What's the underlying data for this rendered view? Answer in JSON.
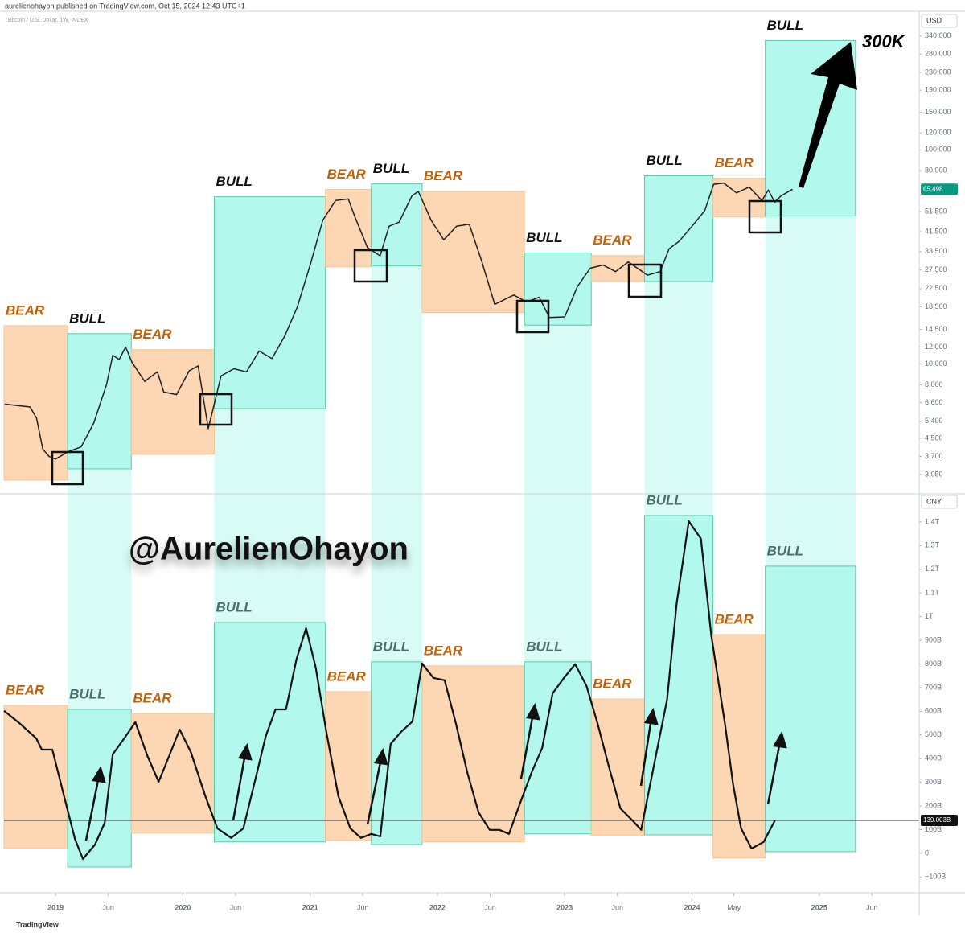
{
  "header": {
    "byline": "aurelienohayon published on TradingView.com, Oct 15, 2024 12:43 UTC+1",
    "footer": "TradingView",
    "watermark": "@AurelienOhayon"
  },
  "chart_data": [
    {
      "type": "line",
      "log": true,
      "unit": "USD",
      "annotation": "300K",
      "xlim": [
        2018.595,
        2025.785
      ],
      "ylim": [
        2520,
        440000
      ],
      "yticks": [
        {
          "value": 3050,
          "label": "3,050"
        },
        {
          "value": 3700,
          "label": "3,700"
        },
        {
          "value": 4500,
          "label": "4,500"
        },
        {
          "value": 5400,
          "label": "5,400"
        },
        {
          "value": 6600,
          "label": "6,600"
        },
        {
          "value": 8000,
          "label": "8,000"
        },
        {
          "value": 10000,
          "label": "10,000"
        },
        {
          "value": 12000,
          "label": "12,000"
        },
        {
          "value": 14500,
          "label": "14,500"
        },
        {
          "value": 18500,
          "label": "18,500"
        },
        {
          "value": 22500,
          "label": "22,500"
        },
        {
          "value": 27500,
          "label": "27,500"
        },
        {
          "value": 33500,
          "label": "33,500"
        },
        {
          "value": 41500,
          "label": "41,500"
        },
        {
          "value": 51500,
          "label": "51,500"
        },
        {
          "value": 80000,
          "label": "80,000"
        },
        {
          "value": 100000,
          "label": "100,000"
        },
        {
          "value": 120000,
          "label": "120,000"
        },
        {
          "value": 150000,
          "label": "150,000"
        },
        {
          "value": 190000,
          "label": "190,000"
        },
        {
          "value": 230000,
          "label": "230,000"
        },
        {
          "value": 280000,
          "label": "280,000"
        },
        {
          "value": 340000,
          "label": "340,000"
        }
      ],
      "current": {
        "value": 65498,
        "label": "65,498"
      },
      "series": [
        {
          "name": "Bitcoin / U.S. Dollar, 1W, INDEX",
          "color": "#222222",
          "x": [
            2018.6,
            2018.7,
            2018.8,
            2018.85,
            2018.9,
            2018.95,
            2019.0,
            2019.1,
            2019.2,
            2019.3,
            2019.4,
            2019.45,
            2019.5,
            2019.55,
            2019.6,
            2019.7,
            2019.8,
            2019.85,
            2019.95,
            2020.05,
            2020.12,
            2020.2,
            2020.3,
            2020.4,
            2020.5,
            2020.6,
            2020.7,
            2020.8,
            2020.9,
            2021.0,
            2021.1,
            2021.2,
            2021.3,
            2021.35,
            2021.45,
            2021.55,
            2021.62,
            2021.7,
            2021.8,
            2021.85,
            2021.95,
            2022.05,
            2022.15,
            2022.25,
            2022.35,
            2022.45,
            2022.6,
            2022.7,
            2022.8,
            2022.88,
            2023.0,
            2023.1,
            2023.2,
            2023.3,
            2023.4,
            2023.5,
            2023.65,
            2023.75,
            2023.82,
            2023.9,
            2024.0,
            2024.1,
            2024.17,
            2024.25,
            2024.35,
            2024.45,
            2024.55,
            2024.6,
            2024.65,
            2024.7,
            2024.79
          ],
          "values": [
            6500,
            6400,
            6300,
            5600,
            4000,
            3700,
            3600,
            3900,
            4100,
            5300,
            8000,
            11000,
            10500,
            12000,
            10200,
            8300,
            9200,
            7400,
            7200,
            9300,
            9800,
            5000,
            8800,
            9500,
            9200,
            11500,
            10600,
            13500,
            18500,
            29000,
            47000,
            58000,
            59000,
            49000,
            35000,
            32000,
            44000,
            46000,
            61000,
            64000,
            47000,
            38000,
            44000,
            45000,
            30000,
            19000,
            21000,
            19500,
            20500,
            16500,
            16600,
            23000,
            28000,
            29000,
            27000,
            30000,
            26000,
            27000,
            34500,
            37500,
            44000,
            52000,
            69000,
            70000,
            63000,
            67000,
            58000,
            65000,
            57000,
            61000,
            65498
          ]
        }
      ],
      "zone_colors": {
        "BULL": "#b2f8ec",
        "BEAR": "#fdd6b3"
      },
      "zone_label_colors": {
        "BULL": "#111111",
        "BEAR": "#c0620a"
      },
      "zones": [
        {
          "label": "BEAR",
          "x": [
            2018.595,
            2019.095
          ],
          "y": [
            2870,
            15100
          ]
        },
        {
          "label": "BULL",
          "x": [
            2019.095,
            2019.595
          ],
          "y": [
            3240,
            13870
          ]
        },
        {
          "label": "BEAR",
          "x": [
            2019.595,
            2020.247
          ],
          "y": [
            3790,
            11670
          ]
        },
        {
          "label": "BULL",
          "x": [
            2020.247,
            2021.12
          ],
          "y": [
            6190,
            60400
          ]
        },
        {
          "label": "BEAR",
          "x": [
            2021.12,
            2021.481
          ],
          "y": [
            28400,
            65300
          ]
        },
        {
          "label": "BULL",
          "x": [
            2021.481,
            2021.88
          ],
          "y": [
            28700,
            69400
          ]
        },
        {
          "label": "BEAR",
          "x": [
            2021.88,
            2022.684
          ],
          "y": [
            17400,
            64100
          ]
        },
        {
          "label": "BULL",
          "x": [
            2022.684,
            2023.209
          ],
          "y": [
            15200,
            33000
          ]
        },
        {
          "label": "BEAR",
          "x": [
            2023.209,
            2023.627
          ],
          "y": [
            24300,
            32100
          ]
        },
        {
          "label": "BULL",
          "x": [
            2023.627,
            2024.165
          ],
          "y": [
            24300,
            75700
          ]
        },
        {
          "label": "BEAR",
          "x": [
            2024.165,
            2024.576
          ],
          "y": [
            48600,
            73700
          ]
        },
        {
          "label": "BULL",
          "x": [
            2024.576,
            2025.285
          ],
          "y": [
            49100,
            324000
          ]
        }
      ]
    },
    {
      "type": "line",
      "unit": "CNY",
      "xlim": [
        2018.595,
        2025.785
      ],
      "ylim": [
        -160,
        1505
      ],
      "xticks": [
        {
          "value": 2019,
          "label": "2019"
        },
        {
          "value": 2019.414,
          "label": "Jun"
        },
        {
          "value": 2020,
          "label": "2020"
        },
        {
          "value": 2020.414,
          "label": "Jun"
        },
        {
          "value": 2021,
          "label": "2021"
        },
        {
          "value": 2021.414,
          "label": "Jun"
        },
        {
          "value": 2022,
          "label": "2022"
        },
        {
          "value": 2022.414,
          "label": "Jun"
        },
        {
          "value": 2023,
          "label": "2023"
        },
        {
          "value": 2023.414,
          "label": "Jun"
        },
        {
          "value": 2024,
          "label": "2024"
        },
        {
          "value": 2024.33,
          "label": "May"
        },
        {
          "value": 2025,
          "label": "2025"
        },
        {
          "value": 2025.414,
          "label": "Jun"
        }
      ],
      "yticks": [
        {
          "value": -100,
          "label": "−100B"
        },
        0,
        {
          "value": 100,
          "label": "100B"
        },
        {
          "value": 200,
          "label": "200B"
        },
        {
          "value": 300,
          "label": "300B"
        },
        {
          "value": 400,
          "label": "400B"
        },
        {
          "value": 500,
          "label": "500B"
        },
        {
          "value": 600,
          "label": "600B"
        },
        {
          "value": 700,
          "label": "700B"
        },
        {
          "value": 800,
          "label": "800B"
        },
        {
          "value": 900,
          "label": "900B"
        },
        {
          "value": 1000,
          "label": "1T"
        },
        {
          "value": 1100,
          "label": "1.1T"
        },
        {
          "value": 1200,
          "label": "1.2T"
        },
        {
          "value": 1300,
          "label": "1.3T"
        },
        {
          "value": 1400,
          "label": "1.4T"
        }
      ],
      "current": {
        "value": 139.003,
        "label": "139.003B"
      },
      "series": [
        {
          "color": "#111111",
          "x": [
            2018.595,
            2018.722,
            2018.848,
            2018.892,
            2018.975,
            2019.07,
            2019.152,
            2019.215,
            2019.31,
            2019.386,
            2019.449,
            2019.544,
            2019.627,
            2019.722,
            2019.81,
            2019.892,
            2019.975,
            2020.063,
            2020.177,
            2020.272,
            2020.38,
            2020.475,
            2020.576,
            2020.652,
            2020.728,
            2020.81,
            2020.892,
            2020.968,
            2021.044,
            2021.127,
            2021.222,
            2021.316,
            2021.399,
            2021.481,
            2021.551,
            2021.633,
            2021.715,
            2021.804,
            2021.88,
            2021.968,
            2022.057,
            2022.146,
            2022.234,
            2022.323,
            2022.411,
            2022.487,
            2022.563,
            2022.646,
            2022.741,
            2022.823,
            2022.905,
            2022.994,
            2023.082,
            2023.171,
            2023.259,
            2023.342,
            2023.437,
            2023.532,
            2023.601,
            2023.703,
            2023.804,
            2023.88,
            2023.975,
            2024.07,
            2024.152,
            2024.259,
            2024.323,
            2024.386,
            2024.468,
            2024.563,
            2024.652
          ],
          "values": [
            602,
            547,
            486,
            438,
            438,
            234,
            61,
            -24,
            37,
            129,
            418,
            489,
            554,
            411,
            302,
            411,
            523,
            428,
            241,
            105,
            65,
            105,
            326,
            496,
            608,
            608,
            819,
            951,
            785,
            513,
            241,
            105,
            65,
            82,
            71,
            462,
            513,
            557,
            802,
            741,
            731,
            547,
            343,
            173,
            99,
            99,
            82,
            207,
            343,
            445,
            676,
            741,
            799,
            707,
            547,
            377,
            190,
            139,
            99,
            377,
            649,
            1057,
            1403,
            1329,
            921,
            547,
            292,
            105,
            20,
            48,
            139
          ]
        }
      ],
      "zone_colors": {
        "BULL": "#b2f8ec",
        "BEAR": "#fdd6b3"
      },
      "zone_label_colors": {
        "BULL": "#4b6e6a",
        "BEAR": "#c0620a"
      },
      "zones": [
        {
          "label": "BEAR",
          "x": [
            2018.595,
            2019.095
          ],
          "y": [
            20,
            625
          ]
        },
        {
          "label": "BULL",
          "x": [
            2019.095,
            2019.595
          ],
          "y": [
            -58,
            608
          ]
        },
        {
          "label": "BEAR",
          "x": [
            2019.595,
            2020.247
          ],
          "y": [
            85,
            591
          ]
        },
        {
          "label": "BULL",
          "x": [
            2020.247,
            2021.12
          ],
          "y": [
            48,
            975
          ]
        },
        {
          "label": "BEAR",
          "x": [
            2021.12,
            2021.481
          ],
          "y": [
            54,
            683
          ]
        },
        {
          "label": "BULL",
          "x": [
            2021.481,
            2021.88
          ],
          "y": [
            37,
            809
          ]
        },
        {
          "label": "BEAR",
          "x": [
            2021.88,
            2022.684
          ],
          "y": [
            48,
            792
          ]
        },
        {
          "label": "BULL",
          "x": [
            2022.684,
            2023.209
          ],
          "y": [
            82,
            809
          ]
        },
        {
          "label": "BEAR",
          "x": [
            2023.209,
            2023.627
          ],
          "y": [
            75,
            652
          ]
        },
        {
          "label": "BULL",
          "x": [
            2023.627,
            2024.165
          ],
          "y": [
            78,
            1427
          ]
        },
        {
          "label": "BEAR",
          "x": [
            2024.165,
            2024.576
          ],
          "y": [
            -20,
            924
          ]
        },
        {
          "label": "BULL",
          "x": [
            2024.576,
            2025.285
          ],
          "y": [
            7,
            1213
          ]
        }
      ]
    }
  ]
}
